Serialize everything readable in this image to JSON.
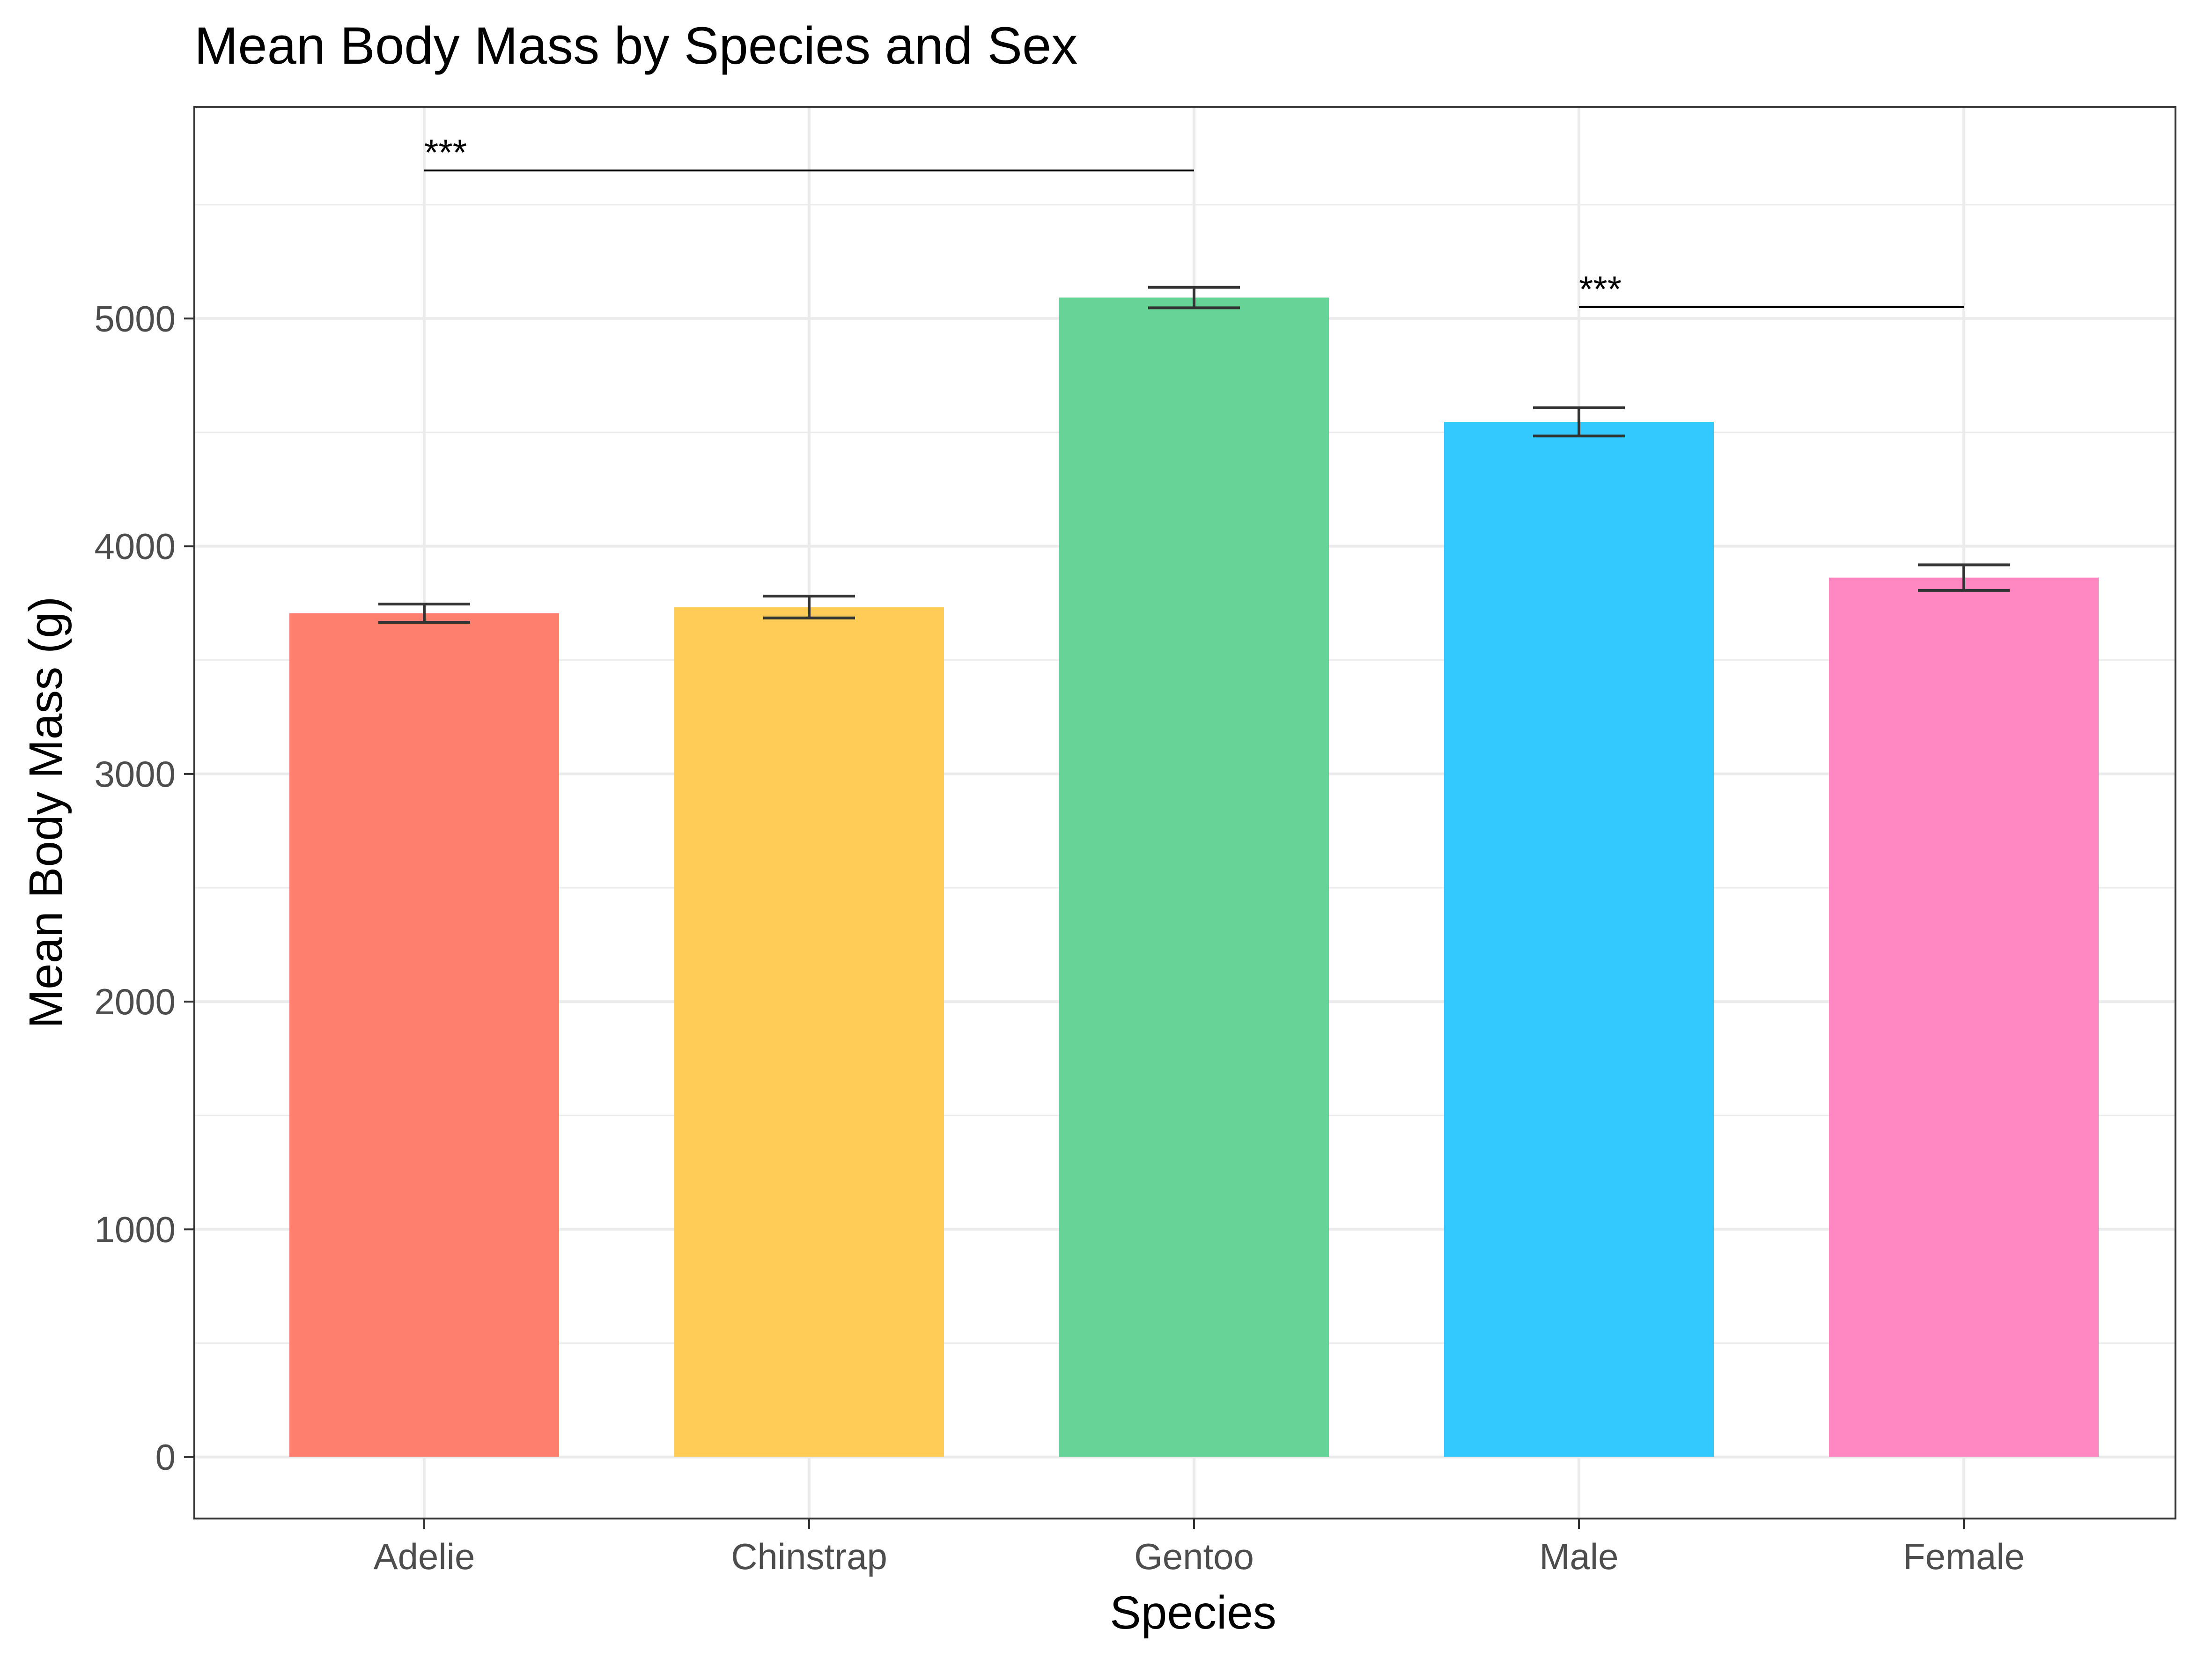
{
  "chart_data": {
    "type": "bar",
    "title": "Mean Body Mass by Species and Sex",
    "xlabel": "Species",
    "ylabel": "Mean Body Mass (g)",
    "categories": [
      "Adelie",
      "Chinstrap",
      "Gentoo",
      "Male",
      "Female"
    ],
    "values": [
      3706,
      3733,
      5092,
      4546,
      3862
    ],
    "error": [
      40,
      48,
      45,
      62,
      56
    ],
    "colors": [
      "#FF7F6E",
      "#FFCD55",
      "#66D496",
      "#33C9FF",
      "#FF88C2"
    ],
    "ylim": [
      -270,
      5930
    ],
    "yticks": [
      0,
      1000,
      2000,
      3000,
      4000,
      5000
    ],
    "grid": true,
    "legend": "none",
    "annotations": [
      {
        "label": "***",
        "from": "Adelie",
        "to": "Gentoo",
        "y": 5650
      },
      {
        "label": "***",
        "from": "Male",
        "to": "Female",
        "y": 5050
      }
    ]
  }
}
